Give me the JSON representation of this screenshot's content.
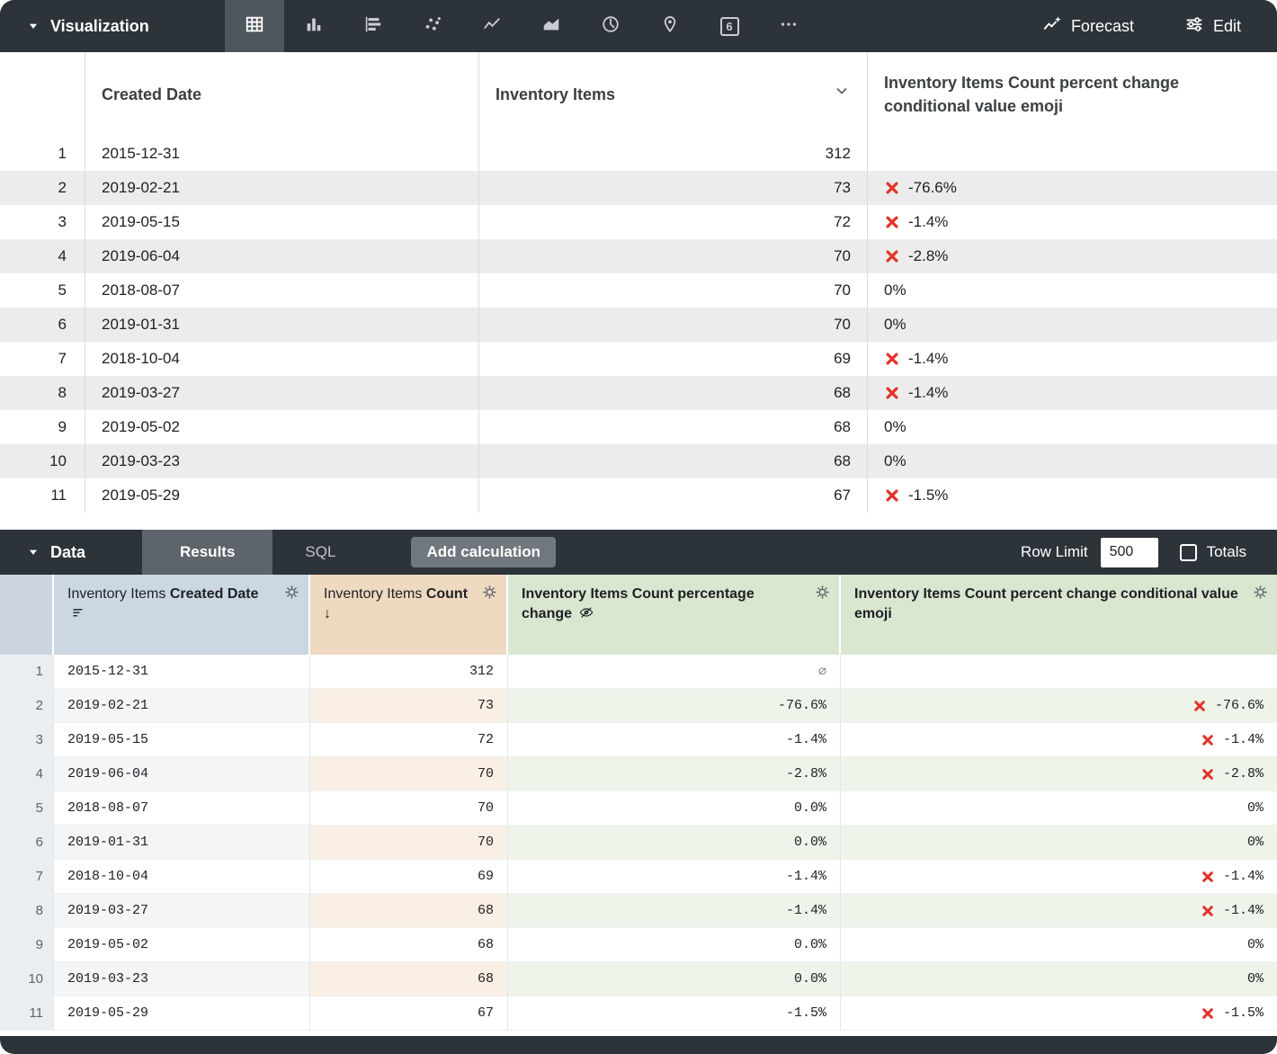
{
  "colors": {
    "accent_red": "#e2332a",
    "bar_bg": "#2c3339",
    "header_date_bg": "#cbd7e3",
    "header_count_bg": "#eed9c1",
    "header_calc_bg": "#d9e6d0"
  },
  "viz_bar": {
    "title": "Visualization",
    "forecast_label": "Forecast",
    "edit_label": "Edit",
    "single_value_glyph": "6",
    "icons": [
      "table",
      "column-chart",
      "bar-chart",
      "scatter",
      "line-chart",
      "area-chart",
      "pie-chart",
      "map",
      "single-value",
      "more"
    ],
    "selected_icon": "table"
  },
  "viz_table": {
    "columns": {
      "date": "Created Date",
      "count": "Inventory Items",
      "emoji": "Inventory Items Count percent change conditional value emoji"
    }
  },
  "data_bar": {
    "title": "Data",
    "tabs": {
      "results": "Results",
      "sql": "SQL"
    },
    "add_calculation": "Add calculation",
    "row_limit_label": "Row Limit",
    "row_limit_value": "500",
    "totals_label": "Totals"
  },
  "results_table": {
    "headers": {
      "date_prefix": "Inventory Items",
      "date_field": "Created Date",
      "count_prefix": "Inventory Items",
      "count_field": "Count",
      "count_sort": "↓",
      "pct_field": "Inventory Items Count percentage change",
      "emoji_field": "Inventory Items Count percent change conditional value emoji"
    }
  },
  "rows": [
    {
      "num": "1",
      "date": "2015-12-31",
      "count": "312",
      "pct": "∅",
      "emoji": "",
      "x": false
    },
    {
      "num": "2",
      "date": "2019-02-21",
      "count": "73",
      "pct": "-76.6%",
      "emoji": "-76.6%",
      "x": true
    },
    {
      "num": "3",
      "date": "2019-05-15",
      "count": "72",
      "pct": "-1.4%",
      "emoji": "-1.4%",
      "x": true
    },
    {
      "num": "4",
      "date": "2019-06-04",
      "count": "70",
      "pct": "-2.8%",
      "emoji": "-2.8%",
      "x": true
    },
    {
      "num": "5",
      "date": "2018-08-07",
      "count": "70",
      "pct": "0.0%",
      "emoji": "0%",
      "x": false
    },
    {
      "num": "6",
      "date": "2019-01-31",
      "count": "70",
      "pct": "0.0%",
      "emoji": "0%",
      "x": false
    },
    {
      "num": "7",
      "date": "2018-10-04",
      "count": "69",
      "pct": "-1.4%",
      "emoji": "-1.4%",
      "x": true
    },
    {
      "num": "8",
      "date": "2019-03-27",
      "count": "68",
      "pct": "-1.4%",
      "emoji": "-1.4%",
      "x": true
    },
    {
      "num": "9",
      "date": "2019-05-02",
      "count": "68",
      "pct": "0.0%",
      "emoji": "0%",
      "x": false
    },
    {
      "num": "10",
      "date": "2019-03-23",
      "count": "68",
      "pct": "0.0%",
      "emoji": "0%",
      "x": false
    },
    {
      "num": "11",
      "date": "2019-05-29",
      "count": "67",
      "pct": "-1.5%",
      "emoji": "-1.5%",
      "x": true
    }
  ]
}
